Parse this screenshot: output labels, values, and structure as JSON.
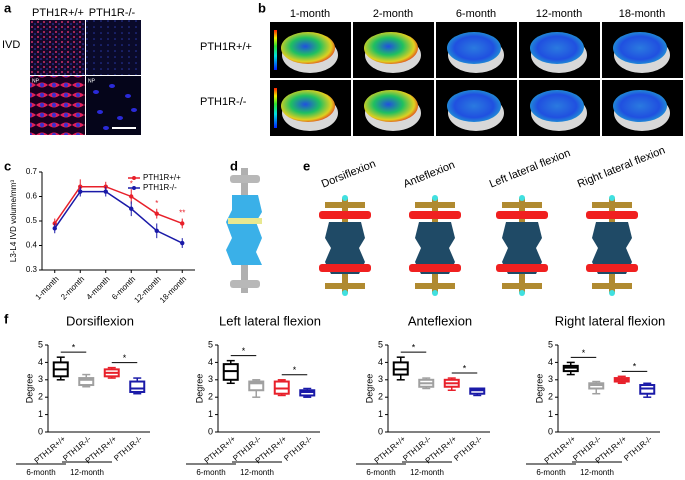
{
  "panel_labels": [
    "a",
    "b",
    "c",
    "d",
    "e",
    "f"
  ],
  "panel_a": {
    "columns": [
      "PTH1R+/+",
      "PTH1R-/-"
    ],
    "row": "IVD",
    "inset": [
      "NP",
      "NP"
    ]
  },
  "panel_b": {
    "columns": [
      "1-month",
      "2-month",
      "6-month",
      "12-month",
      "18-month"
    ],
    "rows": [
      "PTH1R+/+",
      "PTH1R-/-"
    ]
  },
  "panel_e": {
    "labels": [
      "Dorsiflexion",
      "Anteflexion",
      "Left lateral flexion",
      "Right lateral flexion"
    ]
  },
  "chart_data": [
    {
      "type": "line",
      "ylabel": "L3-L4 IVD volume/mm³",
      "categories": [
        "1-month",
        "2-month",
        "4-month",
        "6-month",
        "12-month",
        "18-month"
      ],
      "ylim": [
        0.3,
        0.7
      ],
      "yticks": [
        0.3,
        0.4,
        0.5,
        0.6,
        0.7
      ],
      "series": [
        {
          "name": "PTH1R+/+",
          "color": "#e8202a",
          "values": [
            0.49,
            0.64,
            0.64,
            0.6,
            0.53,
            0.49
          ],
          "errors": [
            0.02,
            0.03,
            0.02,
            0.03,
            0.02,
            0.02
          ]
        },
        {
          "name": "PTH1R-/-",
          "color": "#1a1aa8",
          "values": [
            0.47,
            0.62,
            0.62,
            0.55,
            0.46,
            0.41
          ],
          "errors": [
            0.02,
            0.02,
            0.02,
            0.03,
            0.03,
            0.02
          ]
        }
      ],
      "annotations": [
        {
          "text": "*",
          "category": "6-month"
        },
        {
          "text": "*",
          "category": "12-month"
        },
        {
          "text": "**",
          "category": "18-month"
        }
      ],
      "legend": "upper right"
    },
    {
      "type": "box",
      "title": "Dorsiflexion",
      "ylabel": "Degree",
      "categories": [
        "PTH1R+/+",
        "PTH1R-/-",
        "PTH1R+/+",
        "PTH1R-/-"
      ],
      "groups": [
        "6-month",
        "12-month"
      ],
      "ylim": [
        0,
        5
      ],
      "yticks": [
        0,
        1,
        2,
        3,
        4,
        5
      ],
      "boxes": [
        {
          "color": "#000000",
          "min": 3.0,
          "q1": 3.2,
          "median": 3.6,
          "q3": 4.0,
          "max": 4.3
        },
        {
          "color": "#a0a0a0",
          "min": 2.6,
          "q1": 2.7,
          "median": 3.0,
          "q3": 3.1,
          "max": 3.3
        },
        {
          "color": "#e8202a",
          "min": 3.1,
          "q1": 3.2,
          "median": 3.4,
          "q3": 3.6,
          "max": 3.7
        },
        {
          "color": "#1a1aa8",
          "min": 2.2,
          "q1": 2.3,
          "median": 2.5,
          "q3": 2.9,
          "max": 3.1
        }
      ],
      "annotations": [
        "*",
        "*"
      ]
    },
    {
      "type": "box",
      "title": "Left lateral flexion",
      "ylabel": "Degree",
      "categories": [
        "PTH1R+/+",
        "PTH1R-/-",
        "PTH1R+/+",
        "PTH1R-/-"
      ],
      "groups": [
        "6-month",
        "12-month"
      ],
      "ylim": [
        0,
        5
      ],
      "yticks": [
        0,
        1,
        2,
        3,
        4,
        5
      ],
      "boxes": [
        {
          "color": "#000000",
          "min": 2.8,
          "q1": 3.0,
          "median": 3.5,
          "q3": 3.9,
          "max": 4.1
        },
        {
          "color": "#a0a0a0",
          "min": 2.0,
          "q1": 2.4,
          "median": 2.8,
          "q3": 2.9,
          "max": 3.0
        },
        {
          "color": "#e8202a",
          "min": 2.1,
          "q1": 2.2,
          "median": 2.5,
          "q3": 2.9,
          "max": 3.0
        },
        {
          "color": "#1a1aa8",
          "min": 2.0,
          "q1": 2.1,
          "median": 2.3,
          "q3": 2.4,
          "max": 2.5
        }
      ],
      "annotations": [
        "*",
        "*"
      ]
    },
    {
      "type": "box",
      "title": "Anteflexion",
      "ylabel": "Degree",
      "categories": [
        "PTH1R+/+",
        "PTH1R-/-",
        "PTH1R+/+",
        "PTH1R-/-"
      ],
      "groups": [
        "6-month",
        "12-month"
      ],
      "ylim": [
        0,
        5
      ],
      "yticks": [
        0,
        1,
        2,
        3,
        4,
        5
      ],
      "boxes": [
        {
          "color": "#000000",
          "min": 3.0,
          "q1": 3.3,
          "median": 3.6,
          "q3": 4.0,
          "max": 4.3
        },
        {
          "color": "#a0a0a0",
          "min": 2.5,
          "q1": 2.6,
          "median": 2.8,
          "q3": 3.0,
          "max": 3.1
        },
        {
          "color": "#e8202a",
          "min": 2.4,
          "q1": 2.6,
          "median": 2.8,
          "q3": 3.0,
          "max": 3.1
        },
        {
          "color": "#1a1aa8",
          "min": 2.1,
          "q1": 2.2,
          "median": 2.4,
          "q3": 2.5,
          "max": 2.5
        }
      ],
      "annotations": [
        "*",
        "*"
      ]
    },
    {
      "type": "box",
      "title": "Right lateral flexion",
      "ylabel": "Degree",
      "categories": [
        "PTH1R+/+",
        "PTH1R-/-",
        "PTH1R+/+",
        "PTH1R-/-"
      ],
      "groups": [
        "6-month",
        "12-month"
      ],
      "ylim": [
        0,
        5
      ],
      "yticks": [
        0,
        1,
        2,
        3,
        4,
        5
      ],
      "boxes": [
        {
          "color": "#000000",
          "min": 3.3,
          "q1": 3.5,
          "median": 3.7,
          "q3": 3.8,
          "max": 4.0
        },
        {
          "color": "#a0a0a0",
          "min": 2.2,
          "q1": 2.5,
          "median": 2.7,
          "q3": 2.8,
          "max": 2.9
        },
        {
          "color": "#e8202a",
          "min": 2.8,
          "q1": 2.9,
          "median": 3.0,
          "q3": 3.1,
          "max": 3.2
        },
        {
          "color": "#1a1aa8",
          "min": 2.0,
          "q1": 2.2,
          "median": 2.5,
          "q3": 2.7,
          "max": 2.8
        }
      ],
      "annotations": [
        "*",
        "*"
      ]
    }
  ]
}
